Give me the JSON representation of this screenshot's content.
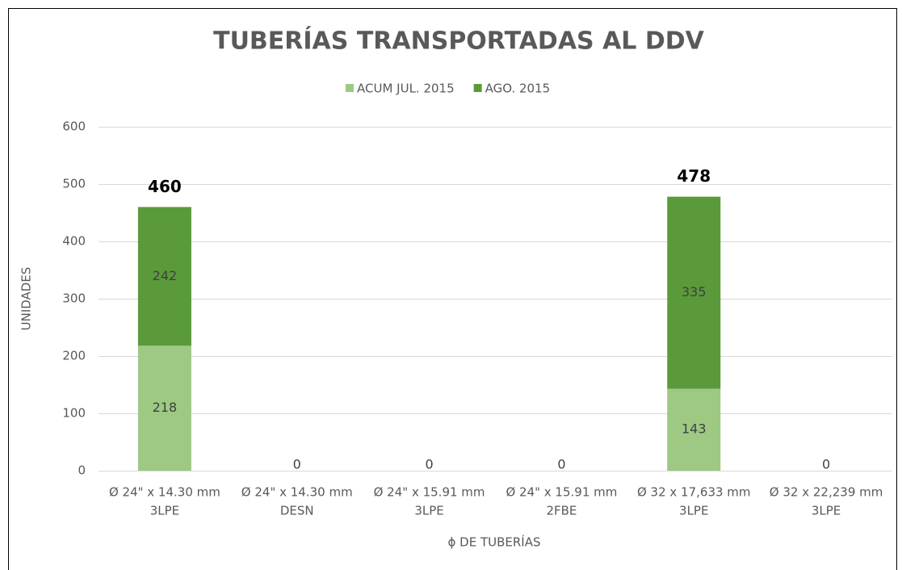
{
  "chart_data": {
    "type": "stacked_bar",
    "title": "TUBERÍAS TRANSPORTADAS AL DDV",
    "y_label": "UNIDADES",
    "x_label": "ϕ DE TUBERÍAS",
    "categories": [
      [
        "Ø 24\" x 14.30 mm",
        "3LPE"
      ],
      [
        "Ø 24\" x 14.30 mm",
        "DESN"
      ],
      [
        "Ø 24\" x 15.91 mm",
        "3LPE"
      ],
      [
        "Ø 24\" x 15.91 mm",
        "2FBE"
      ],
      [
        "Ø 32 x 17,633 mm",
        "3LPE"
      ],
      [
        "Ø 32 x 22,239 mm",
        "3LPE"
      ]
    ],
    "series": [
      {
        "name": "ACUM JUL. 2015",
        "color": "#9dc983",
        "values": [
          218,
          0,
          0,
          0,
          143,
          0
        ]
      },
      {
        "name": "AGO. 2015",
        "color": "#5a9a3a",
        "values": [
          242,
          0,
          0,
          0,
          335,
          0
        ]
      }
    ],
    "totals": [
      460,
      null,
      null,
      null,
      478,
      null
    ],
    "ylim": [
      0,
      600
    ],
    "yticks": [
      0,
      100,
      200,
      300,
      400,
      500,
      600
    ],
    "grid": true,
    "legend": "top"
  }
}
